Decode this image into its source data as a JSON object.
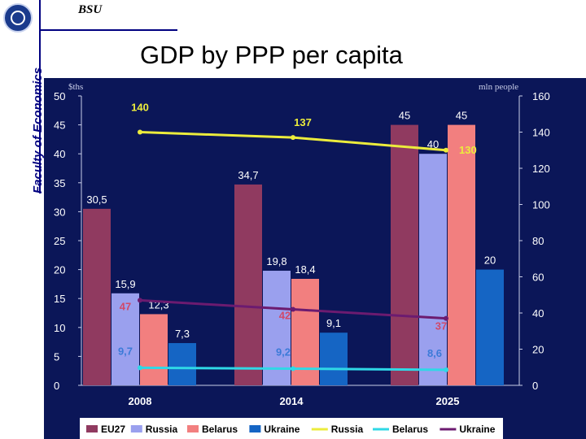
{
  "header": {
    "org": "BSU",
    "faculty": "Faculty of Economics",
    "logo_icon": "university-crest-icon"
  },
  "slide": {
    "title": "GDP by PPP per capita"
  },
  "colors": {
    "background": "#0b1658",
    "eu27": "#903a60",
    "russia_bar": "#9aa0ee",
    "belarus_bar": "#f27f7f",
    "ukraine_bar": "#1565c4",
    "russia_line": "#ecec3c",
    "belarus_line": "#2fd8e6",
    "ukraine_line": "#6c1b70"
  },
  "chart_data": {
    "type": "bar",
    "title": "GDP by PPP per capita",
    "categories": [
      "2008",
      "2014",
      "2025"
    ],
    "y_left": {
      "label": "$ths",
      "lim": [
        0,
        50
      ],
      "ticks": [
        "0",
        "5",
        "10",
        "15",
        "20",
        "25",
        "30",
        "35",
        "40",
        "45",
        "50"
      ]
    },
    "y_right": {
      "label": "mln people",
      "lim": [
        0,
        160
      ],
      "ticks": [
        "0",
        "20",
        "40",
        "60",
        "80",
        "100",
        "120",
        "140",
        "160"
      ]
    },
    "bar_series": [
      {
        "name": "EU27",
        "values": [
          30.5,
          34.7,
          45
        ],
        "labels": [
          "30,5",
          "34,7",
          "45"
        ]
      },
      {
        "name": "Russia",
        "values": [
          15.9,
          19.8,
          40
        ],
        "labels": [
          "15,9",
          "19,8",
          "40"
        ]
      },
      {
        "name": "Belarus",
        "values": [
          12.3,
          18.4,
          45
        ],
        "labels": [
          "12,3",
          "18,4",
          "45"
        ]
      },
      {
        "name": "Ukraine",
        "values": [
          7.3,
          9.1,
          20
        ],
        "labels": [
          "7,3",
          "9,1",
          "20"
        ]
      }
    ],
    "line_series": [
      {
        "name": "Russia",
        "axis": "right",
        "values": [
          140,
          137,
          130
        ],
        "labels": [
          "140",
          "137",
          "130"
        ]
      },
      {
        "name": "Belarus",
        "axis": "right",
        "values": [
          9.7,
          9.2,
          8.6
        ],
        "labels": [
          "9,7",
          "9,2",
          "8,6"
        ]
      },
      {
        "name": "Ukraine",
        "axis": "right",
        "values": [
          47,
          42,
          37
        ],
        "labels": [
          "47",
          "42",
          "37"
        ]
      }
    ],
    "legend": {
      "position": "bottom",
      "entries": [
        {
          "name": "EU27",
          "kind": "bar"
        },
        {
          "name": "Russia",
          "kind": "bar"
        },
        {
          "name": "Belarus",
          "kind": "bar"
        },
        {
          "name": "Ukraine",
          "kind": "bar"
        },
        {
          "name": "Russia",
          "kind": "line"
        },
        {
          "name": "Belarus",
          "kind": "line"
        },
        {
          "name": "Ukraine",
          "kind": "line"
        }
      ]
    }
  }
}
